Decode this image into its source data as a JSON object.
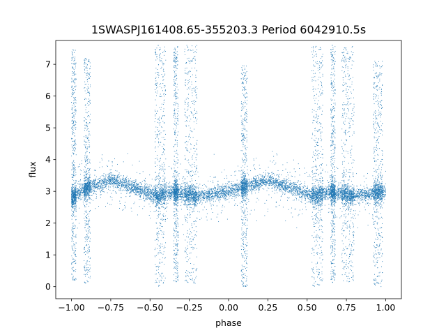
{
  "chart_data": {
    "type": "scatter",
    "title": "1SWASPJ161408.65-355203.3 Period 6042910.5s",
    "xlabel": "phase",
    "ylabel": "flux",
    "xlim": [
      -1.1,
      1.1
    ],
    "ylim": [
      -0.38,
      7.75
    ],
    "xticks": [
      -1.0,
      -0.75,
      -0.5,
      -0.25,
      0.0,
      0.25,
      0.5,
      0.75,
      1.0
    ],
    "xtick_labels": [
      "−1.00",
      "−0.75",
      "−0.50",
      "−0.25",
      "0.00",
      "0.25",
      "0.50",
      "0.75",
      "1.00"
    ],
    "yticks": [
      0,
      1,
      2,
      3,
      4,
      5,
      6,
      7
    ],
    "ytick_labels": [
      "0",
      "1",
      "2",
      "3",
      "4",
      "5",
      "6",
      "7"
    ],
    "grid": false,
    "color": "#1f77b4",
    "series": [
      {
        "phase_range": [
          -1.0,
          1.0
        ],
        "baseline_flux": 3.0,
        "profile": [
          {
            "phase": -1.0,
            "flux": 2.8
          },
          {
            "phase": -0.9,
            "flux": 3.1
          },
          {
            "phase": -0.75,
            "flux": 3.35
          },
          {
            "phase": -0.6,
            "flux": 3.1
          },
          {
            "phase": -0.45,
            "flux": 2.85
          },
          {
            "phase": -0.35,
            "flux": 3.0
          },
          {
            "phase": -0.2,
            "flux": 2.85
          },
          {
            "phase": 0.0,
            "flux": 3.0
          },
          {
            "phase": 0.1,
            "flux": 3.15
          },
          {
            "phase": 0.25,
            "flux": 3.35
          },
          {
            "phase": 0.4,
            "flux": 3.1
          },
          {
            "phase": 0.55,
            "flux": 2.85
          },
          {
            "phase": 0.65,
            "flux": 3.0
          },
          {
            "phase": 0.8,
            "flux": 2.85
          },
          {
            "phase": 1.0,
            "flux": 3.0
          }
        ],
        "spread_ranges": [
          {
            "phase": [
              -1.0,
              -0.97
            ],
            "flux": [
              0.2,
              7.5
            ]
          },
          {
            "phase": [
              -0.92,
              -0.88
            ],
            "flux": [
              0.1,
              7.2
            ]
          },
          {
            "phase": [
              -0.47,
              -0.4
            ],
            "flux": [
              0.0,
              7.6
            ]
          },
          {
            "phase": [
              -0.35,
              -0.32
            ],
            "flux": [
              0.1,
              7.6
            ]
          },
          {
            "phase": [
              -0.28,
              -0.2
            ],
            "flux": [
              0.1,
              7.6
            ]
          },
          {
            "phase": [
              0.08,
              0.12
            ],
            "flux": [
              0.0,
              7.0
            ]
          },
          {
            "phase": [
              0.53,
              0.6
            ],
            "flux": [
              0.0,
              7.6
            ]
          },
          {
            "phase": [
              0.65,
              0.68
            ],
            "flux": [
              0.1,
              7.6
            ]
          },
          {
            "phase": [
              0.72,
              0.8
            ],
            "flux": [
              0.1,
              7.6
            ]
          },
          {
            "phase": [
              0.92,
              0.98
            ],
            "flux": [
              0.0,
              7.1
            ]
          }
        ]
      }
    ]
  }
}
